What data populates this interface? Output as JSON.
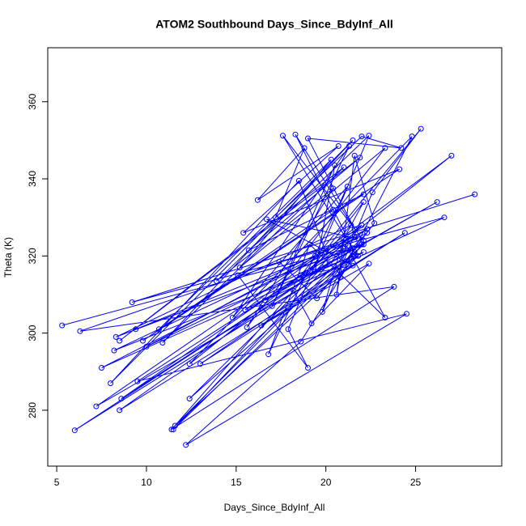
{
  "chart_data": {
    "type": "line",
    "title": "ATOM2 Southbound Days_Since_BdyInf_All",
    "xlabel": "Days_Since_BdyInf_All",
    "ylabel": "Theta (K)",
    "xlim": [
      4.5,
      29.8
    ],
    "ylim": [
      265.5,
      374
    ],
    "xticks": [
      5,
      10,
      15,
      20,
      25
    ],
    "yticks": [
      280,
      300,
      320,
      340,
      360
    ],
    "grid": false,
    "legend": "none",
    "marker": "open-circle",
    "color": "#0000ff",
    "series": [
      {
        "x": [
          5.3,
          22.0,
          8.3,
          21.4,
          11.4,
          23.8,
          6.3,
          21.6,
          8.2,
          22.1,
          7.2,
          19.4,
          9.4,
          21.5,
          10.0,
          22.3,
          8.6,
          20.2,
          6.0,
          21.5,
          7.5,
          22.3,
          11.6,
          21.8,
          13.0,
          24.4,
          8.5,
          19.8,
          12.4,
          22.1,
          11.5,
          21.0,
          9.5,
          24.5,
          12.2,
          18.6,
          22.1,
          17.6,
          21.6,
          18.3,
          21.6,
          19.0,
          24.2,
          22.0,
          17.2,
          18.8,
          16.2,
          20.7,
          15.4,
          24.1,
          10.7,
          20.3,
          15.2,
          23.3,
          15.6,
          20.4,
          13.9,
          22.4,
          17.9,
          19.0,
          15.1,
          20.4,
          9.8,
          22.1,
          15.7,
          21.9,
          8.5,
          21.0,
          10.9,
          21.5,
          8.0,
          18.5,
          20.0,
          22.0,
          19.4,
          20.5,
          17.0,
          21.3,
          14.8,
          21.2,
          16.8,
          19.1,
          23.3,
          21.1,
          20.6,
          21.6,
          22.7,
          19.5,
          17.4,
          21.8,
          16.7,
          21.5,
          18.6,
          25.3,
          22.6,
          19.8,
          21.0,
          22.1,
          18.2,
          19.2,
          22.4,
          16.4,
          20.8,
          24.8,
          12.4,
          27.0,
          15.5,
          26.2,
          16.6,
          26.6,
          9.2,
          28.3
        ],
        "y": [
          302,
          323,
          299,
          328,
          275,
          312,
          300.5,
          325,
          295.5,
          321,
          281,
          320,
          301,
          322,
          296.5,
          327,
          283,
          318,
          274.8,
          320,
          291,
          326,
          276,
          320,
          292,
          326,
          280,
          317,
          283,
          323,
          275,
          322,
          287.5,
          305,
          271,
          297.8,
          324,
          351.2,
          321,
          351.5,
          327,
          350.5,
          348,
          351,
          330,
          348,
          334.5,
          348.5,
          326,
          342.5,
          301,
          345,
          317,
          348,
          301.5,
          337.5,
          313.5,
          351.2,
          301,
          291,
          315,
          332,
          298,
          336,
          321.5,
          345.5,
          298,
          343,
          297.5,
          350,
          287,
          339.5,
          321,
          328,
          316,
          343.5,
          307,
          348.5,
          304,
          338,
          294.5,
          323,
          304,
          323,
          310,
          346,
          328.5,
          309,
          318.5,
          324.5,
          329.5,
          317.5,
          315,
          353,
          336.5,
          305.5,
          324.5,
          334,
          311,
          302.5,
          318,
          302,
          314.5,
          351,
          292,
          346,
          306,
          334,
          308.5,
          330,
          308,
          336
        ]
      }
    ]
  }
}
